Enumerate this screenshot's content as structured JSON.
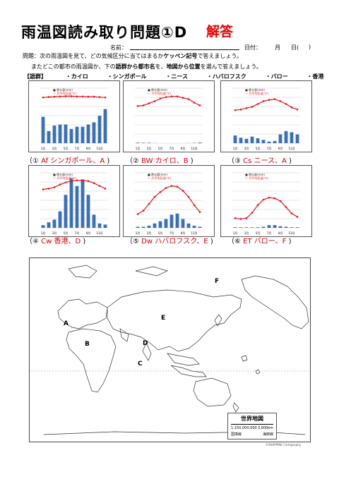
{
  "header": {
    "title": "雨温図読み取り問題①D",
    "answer_label": "解答",
    "name_label": "名前：",
    "date_label": "日付：",
    "month_label": "月",
    "day_label": "日(",
    "day_close": ")"
  },
  "instructions": {
    "line1": "問題：次の雨温図を見て、どの気候区分に当てはまるか",
    "line1_bold": "ケッペン記号",
    "line1_end": "で答えましょう。",
    "line2": "またどこの都市の雨温図か、下の",
    "line2_b1": "語群から都市名",
    "line2_mid": "を、",
    "line2_b2": "地図から位置",
    "line2_end": "を選んで答えましょう。"
  },
  "word_bank": {
    "label": "【語群】",
    "items": [
      "・カイロ",
      "・シンガポール",
      "・ニース",
      "・ハバロフスク",
      "・バロー",
      "・香港"
    ]
  },
  "legend": {
    "precip": "降水量(mm)",
    "temp": "月平均気温(℃)"
  },
  "month_ticks": [
    "1月",
    "3月",
    "5月",
    "7月",
    "9月",
    "11月"
  ],
  "charts": [
    {
      "num": "①",
      "open": "（",
      "answer": "Af シンガポール、A",
      "close": ")",
      "temp": [
        26.5,
        27.2,
        27.6,
        27.9,
        28.3,
        28.3,
        27.9,
        27.9,
        27.6,
        27.6,
        27.0,
        26.5
      ],
      "precip": [
        240,
        110,
        160,
        170,
        170,
        130,
        150,
        150,
        170,
        190,
        250,
        310
      ]
    },
    {
      "num": "②",
      "open": "（",
      "answer": "BW カイロ、B",
      "close": ")",
      "temp": [
        14,
        15,
        18,
        21,
        25,
        27,
        28,
        28,
        26,
        24,
        19,
        15
      ],
      "precip": [
        5,
        4,
        4,
        1,
        0,
        0,
        0,
        0,
        0,
        1,
        3,
        6
      ]
    },
    {
      "num": "③",
      "open": "（",
      "answer": "Cs ニース、A",
      "close": ")",
      "temp": [
        8,
        9,
        11,
        13,
        17,
        21,
        23,
        24,
        21,
        17,
        12,
        9
      ],
      "precip": [
        70,
        50,
        40,
        60,
        45,
        30,
        15,
        20,
        80,
        110,
        100,
        80
      ]
    },
    {
      "num": "④",
      "open": "（",
      "answer": "Cw 香港、D",
      "close": ")",
      "temp": [
        16,
        17,
        19,
        23,
        26,
        28,
        29,
        29,
        28,
        25,
        21,
        17
      ],
      "precip": [
        25,
        50,
        75,
        150,
        300,
        450,
        380,
        440,
        300,
        120,
        40,
        30
      ]
    },
    {
      "num": "⑤",
      "open": "（",
      "answer": "Dw ハバロフスク、E",
      "close": ")",
      "temp": [
        -20,
        -15,
        -5,
        5,
        12,
        18,
        21,
        20,
        14,
        5,
        -7,
        -17
      ],
      "precip": [
        10,
        10,
        20,
        40,
        60,
        80,
        120,
        130,
        80,
        40,
        20,
        10
      ]
    },
    {
      "num": "⑥",
      "open": "（",
      "answer": "ET バロー、F",
      "close": ")",
      "temp": [
        -26,
        -27,
        -26,
        -18,
        -7,
        1,
        4,
        3,
        -1,
        -10,
        -19,
        -24
      ],
      "precip": [
        5,
        5,
        5,
        5,
        5,
        10,
        25,
        25,
        15,
        10,
        5,
        5
      ]
    }
  ],
  "map": {
    "labels": [
      "A",
      "B",
      "C",
      "D",
      "E",
      "F"
    ],
    "legend_title": "世界地図",
    "scale_text": "1:150,000,000",
    "scale_km": "3,000km",
    "legend_border": "国境線",
    "legend_coast": "海岸線",
    "copyright": "©SHAPPINE Cartography"
  }
}
